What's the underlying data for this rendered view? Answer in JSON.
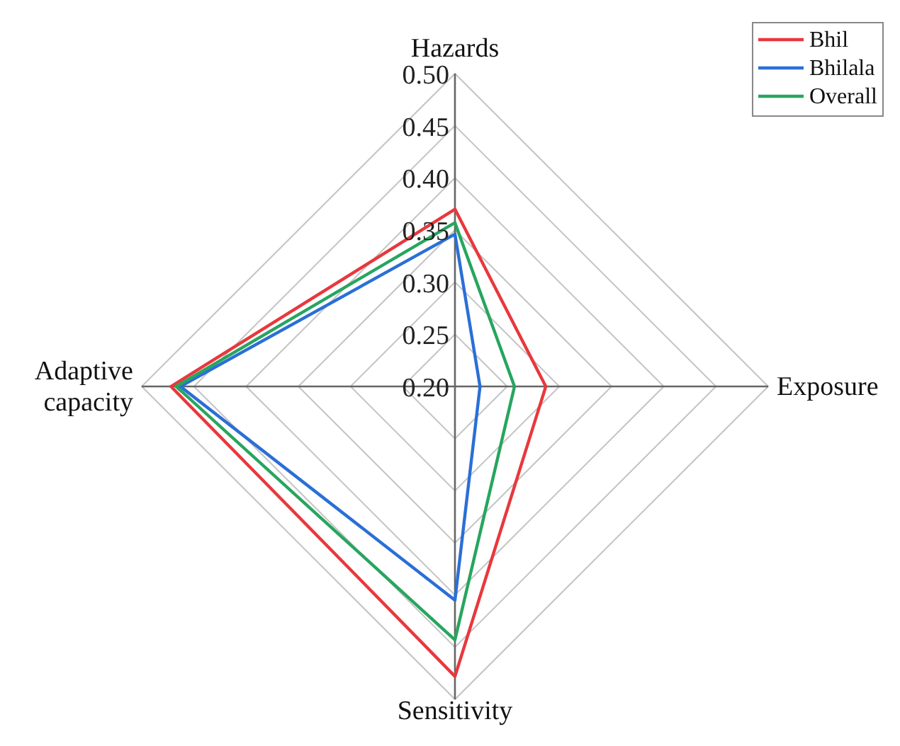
{
  "chart_data": {
    "type": "radar",
    "categories": [
      "Hazards",
      "Exposure",
      "Sensitivity",
      "Adaptive capacity"
    ],
    "series": [
      {
        "name": "Bhil",
        "color": "#e8383d",
        "values": [
          0.37,
          0.287,
          0.478,
          0.472
        ]
      },
      {
        "name": "Bhilala",
        "color": "#2a6fd6",
        "values": [
          0.346,
          0.224,
          0.405,
          0.463
        ]
      },
      {
        "name": "Overall",
        "color": "#27a55f",
        "values": [
          0.357,
          0.257,
          0.443,
          0.467
        ]
      }
    ],
    "ylim": [
      0.2,
      0.5
    ],
    "yticks": [
      {
        "value": 0.2,
        "label": "0.20"
      },
      0.25,
      {
        "value": 0.3,
        "label": "0.30"
      },
      0.35,
      {
        "value": 0.4,
        "label": "0.40"
      },
      0.45,
      {
        "value": 0.5,
        "label": "0.50"
      }
    ],
    "grid": true,
    "legend": "top right"
  }
}
